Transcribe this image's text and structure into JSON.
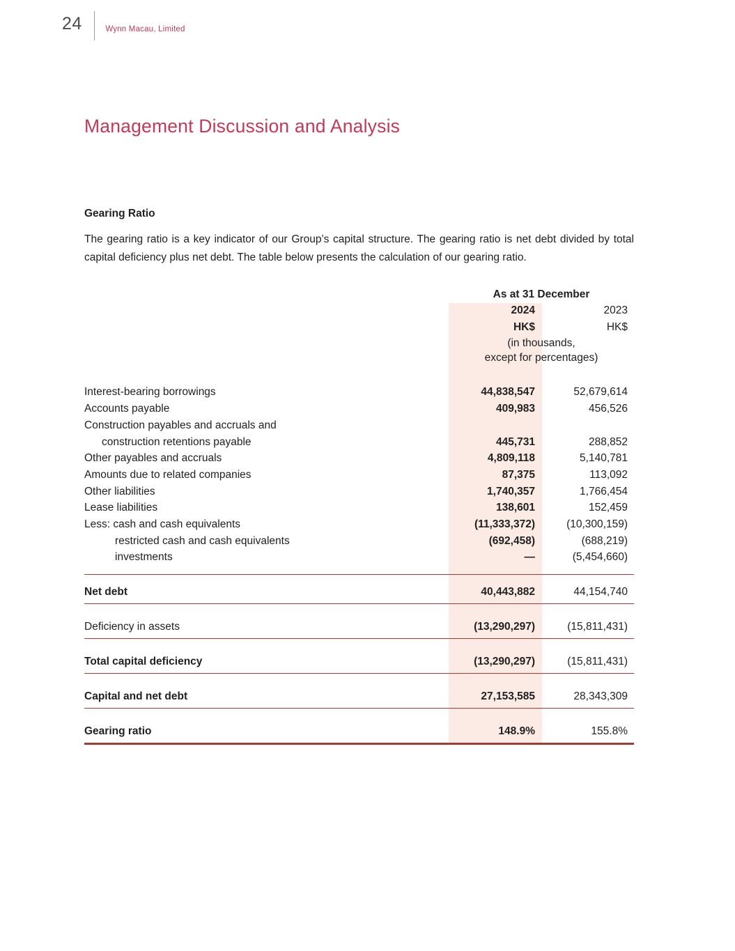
{
  "colors": {
    "brand_red": "#c23a57",
    "rule_red": "#9a4038",
    "highlight_pink": "#fcebe5",
    "text": "#212121",
    "page_number_gray": "#4d4d4d"
  },
  "page": {
    "number": "24",
    "company": "Wynn Macau, Limited",
    "title": "Management Discussion and Analysis"
  },
  "section": {
    "heading": "Gearing Ratio",
    "paragraph": "The gearing ratio is a key indicator of our Group’s capital structure. The gearing ratio is net debt divided by total capital deficiency plus net debt. The table below presents the calculation of our gearing ratio."
  },
  "table": {
    "header": {
      "title": "As at 31 December",
      "col_2024": {
        "year": "2024",
        "currency": "HK$"
      },
      "col_2023": {
        "year": "2023",
        "currency": "HK$"
      },
      "note_line1": "(in thousands,",
      "note_line2": "except for percentages)"
    },
    "rows": [
      {
        "label": "Interest-bearing borrowings",
        "indent": 0,
        "v2024": "44,838,547",
        "v2023": "52,679,614"
      },
      {
        "label": "Accounts payable",
        "indent": 0,
        "v2024": "409,983",
        "v2023": "456,526"
      },
      {
        "label": "Construction payables and accruals and",
        "indent": 0,
        "v2024": "",
        "v2023": ""
      },
      {
        "label": "construction retentions payable",
        "indent": 1,
        "v2024": "445,731",
        "v2023": "288,852"
      },
      {
        "label": "Other payables and accruals",
        "indent": 0,
        "v2024": "4,809,118",
        "v2023": "5,140,781"
      },
      {
        "label": "Amounts due to related companies",
        "indent": 0,
        "v2024": "87,375",
        "v2023": "113,092"
      },
      {
        "label": "Other liabilities",
        "indent": 0,
        "v2024": "1,740,357",
        "v2023": "1,766,454"
      },
      {
        "label": "Lease liabilities",
        "indent": 0,
        "v2024": "138,601",
        "v2023": "152,459"
      },
      {
        "label": "Less: cash and cash equivalents",
        "indent": 0,
        "v2024": "(11,333,372)",
        "v2023": "(10,300,159)"
      },
      {
        "label": "restricted cash and cash equivalents",
        "indent": 2,
        "v2024": "(692,458)",
        "v2023": "(688,219)"
      },
      {
        "label": "investments",
        "indent": 2,
        "v2024": "—",
        "v2023": "(5,454,660)"
      }
    ],
    "summary_rows": [
      {
        "label": "Net debt",
        "bold_label": true,
        "v2024": "40,443,882",
        "v2023": "44,154,740",
        "line_above": true,
        "line_below": "single"
      },
      {
        "label": "Deficiency in assets",
        "bold_label": false,
        "v2024": "(13,290,297)",
        "v2023": "(15,811,431)",
        "line_above": false,
        "line_below": "single"
      },
      {
        "label": "Total capital deficiency",
        "bold_label": true,
        "v2024": "(13,290,297)",
        "v2023": "(15,811,431)",
        "line_above": false,
        "line_below": "single"
      },
      {
        "label": "Capital and net debt",
        "bold_label": true,
        "v2024": "27,153,585",
        "v2023": "28,343,309",
        "line_above": false,
        "line_below": "single"
      },
      {
        "label": "Gearing ratio",
        "bold_label": true,
        "v2024": "148.9%",
        "v2023": "155.8%",
        "line_above": false,
        "line_below": "thick"
      }
    ]
  }
}
